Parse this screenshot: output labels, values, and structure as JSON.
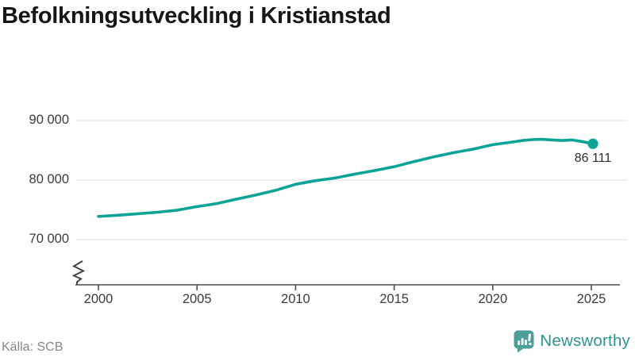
{
  "title": "Befolkningsutveckling i Kristianstad",
  "source": "Källa: SCB",
  "branding": {
    "name": "Newsworthy",
    "icon": "newsworthy-speech-bubble-chart-icon",
    "icon_color": "#4d9d99",
    "text_color": "#2f9490"
  },
  "chart_data": {
    "type": "line",
    "title": "Befolkningsutveckling i Kristianstad",
    "xlabel": "",
    "ylabel": "",
    "grid": "horizontal",
    "legend": "none",
    "axis_break": true,
    "ylim": [
      70000,
      90000
    ],
    "line_color": "#0aa396",
    "grid_color": "#e4e4e4",
    "axis_color": "#4d4d4d",
    "x_ticks": {
      "labels": [
        "2000",
        "2005",
        "2010",
        "2015",
        "2020",
        "2025"
      ],
      "years": [
        2000,
        2005,
        2010,
        2015,
        2020,
        2025
      ]
    },
    "y_ticks": {
      "labels": [
        "90 000",
        "80 000",
        "70 000"
      ],
      "values": [
        90000,
        80000,
        70000
      ]
    },
    "series": [
      {
        "name": "Befolkning",
        "x": [
          2000,
          2001,
          2002,
          2003,
          2004,
          2005,
          2006,
          2007,
          2008,
          2009,
          2010,
          2011,
          2012,
          2013,
          2014,
          2015,
          2016,
          2017,
          2018,
          2019,
          2020,
          2021,
          2021.5,
          2022,
          2022.5,
          2023,
          2023.5,
          2024,
          2024.5,
          2025.08
        ],
        "values": [
          73900,
          74100,
          74350,
          74600,
          74950,
          75550,
          76050,
          76800,
          77500,
          78300,
          79300,
          79900,
          80350,
          81000,
          81600,
          82250,
          83100,
          83900,
          84600,
          85200,
          85950,
          86400,
          86650,
          86800,
          86850,
          86750,
          86650,
          86750,
          86500,
          86111
        ]
      }
    ],
    "end_annotation": {
      "label": "86 111",
      "value": 86111,
      "x": 2025.08
    }
  }
}
